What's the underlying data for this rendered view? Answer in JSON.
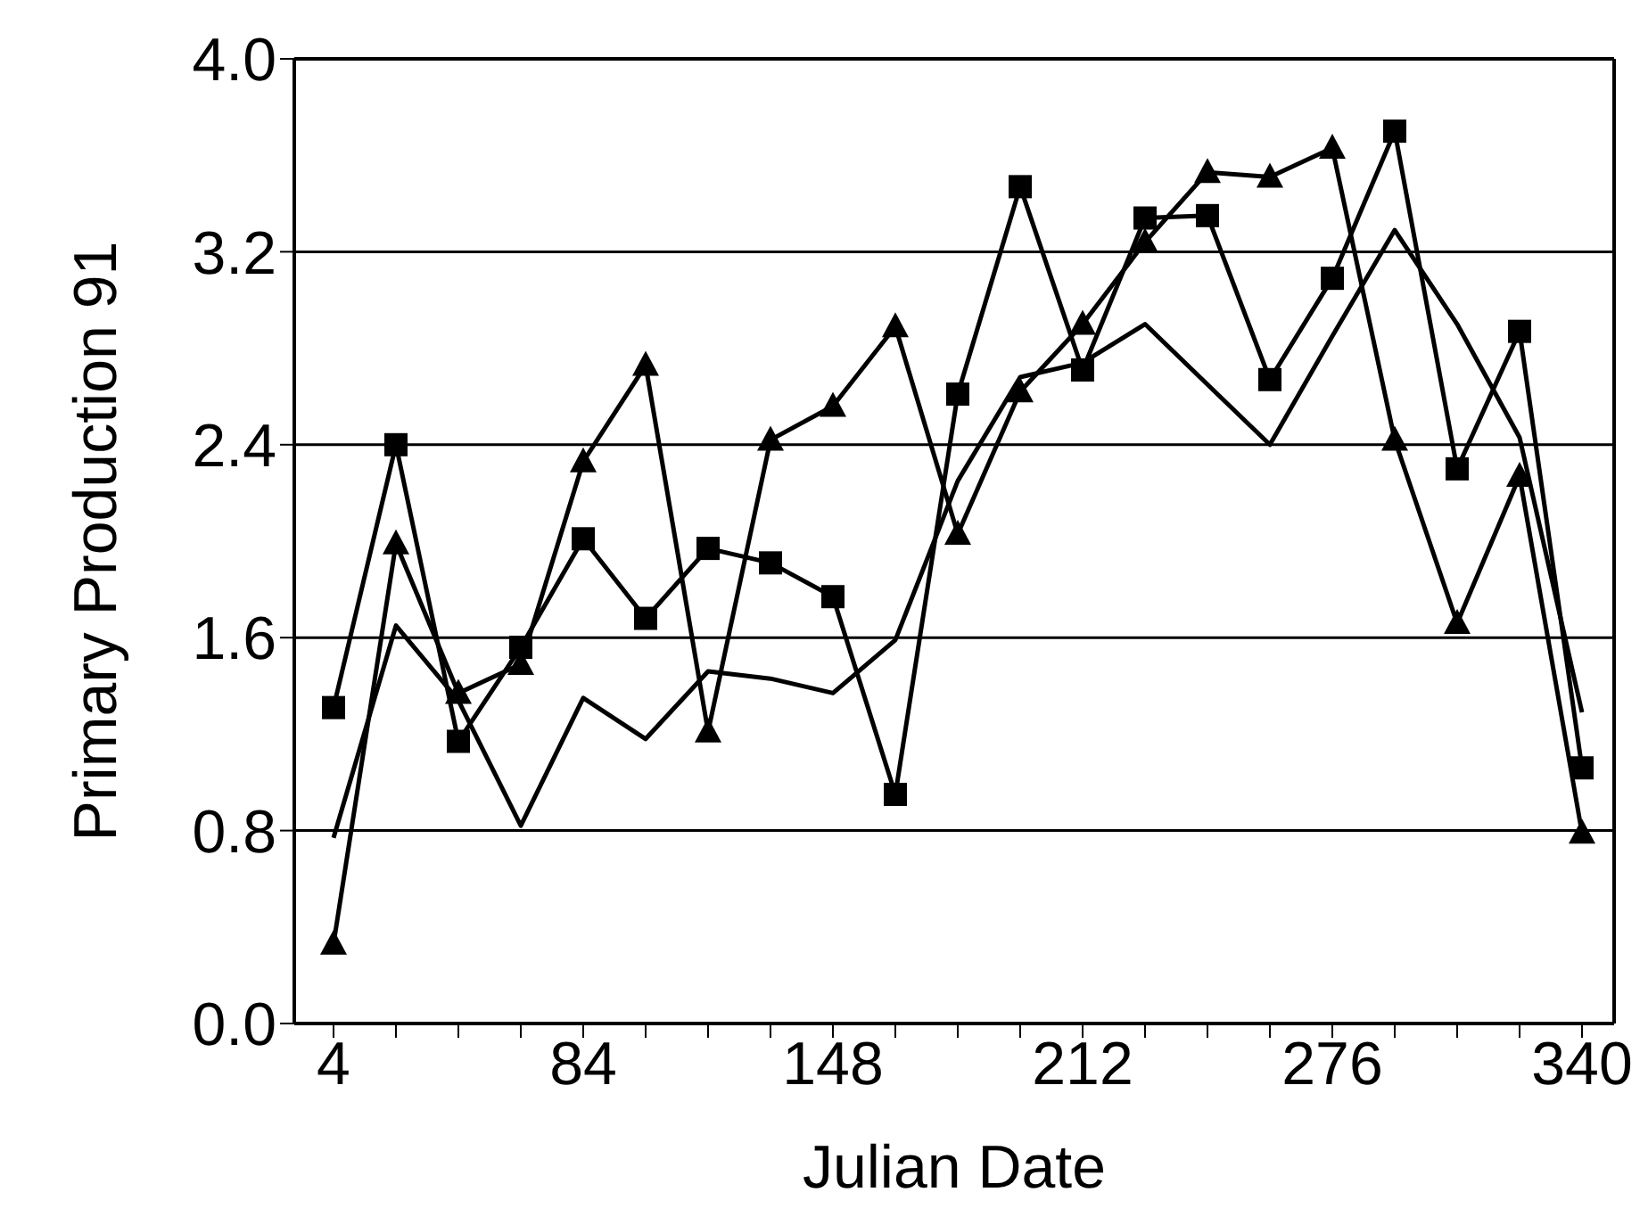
{
  "chart_data": {
    "type": "line",
    "xlabel": "Julian Date",
    "ylabel": "Primary Production 91",
    "categories": [
      "4",
      null,
      null,
      null,
      "84",
      null,
      null,
      null,
      "148",
      null,
      null,
      null,
      "212",
      null,
      null,
      null,
      "276",
      null,
      null,
      null,
      "340"
    ],
    "series": [
      {
        "color": "#000000",
        "marker": "square",
        "values": [
          1.31,
          2.4,
          1.17,
          1.56,
          2.01,
          1.68,
          1.97,
          1.91,
          1.77,
          0.95,
          2.61,
          3.47,
          2.71,
          3.34,
          3.35,
          2.67,
          3.09,
          3.7,
          2.3,
          2.87,
          1.06
        ]
      },
      {
        "color": "#000000",
        "marker": "triangle",
        "values": [
          0.33,
          1.99,
          1.37,
          1.49,
          2.33,
          2.73,
          1.21,
          2.42,
          2.56,
          2.89,
          2.03,
          2.62,
          2.9,
          3.24,
          3.53,
          3.51,
          3.63,
          2.42,
          1.66,
          2.27,
          0.79
        ]
      },
      {
        "color": "#000000",
        "marker": "none",
        "values": [
          0.77,
          1.65,
          1.34,
          0.82,
          1.35,
          1.18,
          1.46,
          1.43,
          1.37,
          1.59,
          2.25,
          2.68,
          2.74,
          2.9,
          2.65,
          2.4,
          2.85,
          3.29,
          2.9,
          2.43,
          1.29
        ]
      }
    ],
    "ylim": [
      0,
      4
    ],
    "yticks": [
      {
        "value": 0,
        "label": "0.0"
      },
      0.8,
      1.6,
      2.4,
      3.2,
      {
        "value": 4,
        "label": "4.0"
      }
    ],
    "grid": "y"
  }
}
